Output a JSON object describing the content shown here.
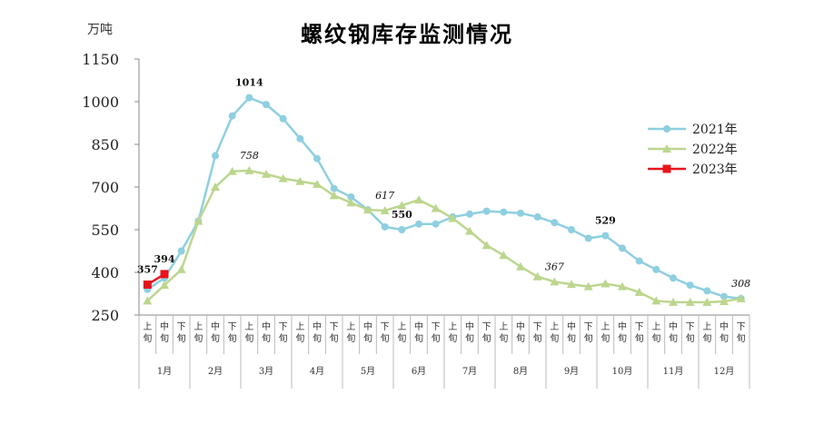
{
  "chart_data": {
    "type": "line",
    "title": "螺纹钢库存监测情况",
    "y_unit": "万吨",
    "ylim": [
      250,
      1150
    ],
    "yticks": [
      250,
      400,
      550,
      700,
      850,
      1000,
      1150
    ],
    "grid": false,
    "legend_position": "right",
    "ten_day_labels": [
      "上旬",
      "中旬",
      "下旬"
    ],
    "months": [
      "1月",
      "2月",
      "3月",
      "4月",
      "5月",
      "6月",
      "7月",
      "8月",
      "9月",
      "10月",
      "11月",
      "12月"
    ],
    "series": [
      {
        "name": "2021年",
        "color": "#8ecfe0",
        "marker": "circle",
        "values": [
          340,
          380,
          475,
          580,
          810,
          950,
          1014,
          990,
          940,
          870,
          800,
          695,
          665,
          620,
          560,
          550,
          570,
          570,
          595,
          605,
          615,
          612,
          608,
          595,
          575,
          550,
          520,
          529,
          485,
          440,
          410,
          380,
          355,
          335,
          315,
          308
        ]
      },
      {
        "name": "2022年",
        "color": "#bcd68e",
        "marker": "triangle",
        "values": [
          300,
          355,
          410,
          580,
          700,
          755,
          758,
          745,
          730,
          720,
          710,
          670,
          645,
          620,
          617,
          635,
          655,
          625,
          590,
          545,
          495,
          460,
          420,
          385,
          367,
          358,
          350,
          360,
          350,
          330,
          300,
          295,
          295,
          295,
          298,
          308
        ]
      },
      {
        "name": "2023年",
        "color": "#e8141c",
        "marker": "square",
        "values": [
          357,
          394
        ]
      }
    ],
    "annotations": [
      {
        "series": "2021年",
        "index": 6,
        "text": "1014",
        "style": "bold"
      },
      {
        "series": "2022年",
        "index": 6,
        "text": "758",
        "style": "italic"
      },
      {
        "series": "2022年",
        "index": 14,
        "text": "617",
        "style": "italic"
      },
      {
        "series": "2021年",
        "index": 15,
        "text": "550",
        "style": "bold"
      },
      {
        "series": "2021年",
        "index": 27,
        "text": "529",
        "style": "bold"
      },
      {
        "series": "2022年",
        "index": 24,
        "text": "367",
        "style": "italic"
      },
      {
        "series": "2023年",
        "index": 0,
        "text": "357",
        "style": "bold"
      },
      {
        "series": "2023年",
        "index": 1,
        "text": "394",
        "style": "bold"
      },
      {
        "series": "2021年",
        "index": 35,
        "text": "308",
        "style": "italic"
      }
    ]
  }
}
